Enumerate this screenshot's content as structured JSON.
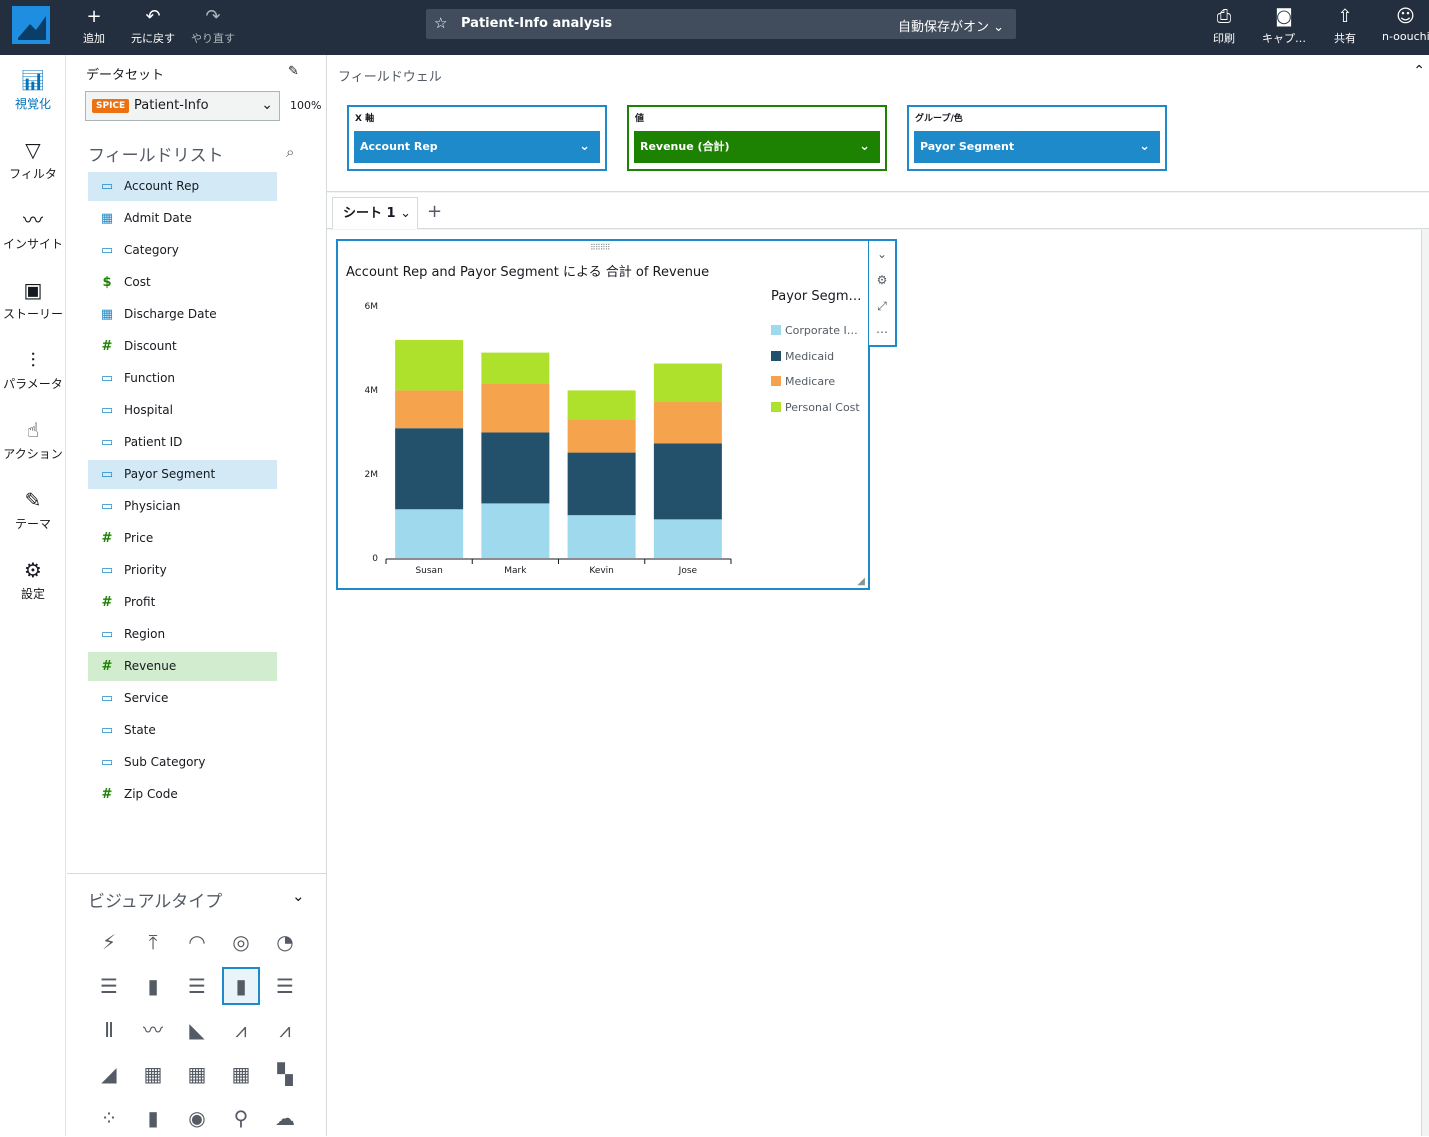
{
  "topbar": {
    "add_label": "追加",
    "undo_label": "元に戻す",
    "redo_label": "やり直す",
    "analysis_title": "Patient-Info analysis",
    "autosave": "自動保存がオン",
    "print_label": "印刷",
    "capture_label": "キャプ…",
    "share_label": "共有",
    "user_label": "n-oouchi"
  },
  "leftnav": {
    "items": [
      {
        "label": "視覚化",
        "icon": "bar-chart-icon"
      },
      {
        "label": "フィルタ",
        "icon": "filter-icon"
      },
      {
        "label": "インサイト",
        "icon": "insight-icon"
      },
      {
        "label": "ストーリー",
        "icon": "story-icon"
      },
      {
        "label": "パラメータ",
        "icon": "parameter-icon"
      },
      {
        "label": "アクション",
        "icon": "action-icon"
      },
      {
        "label": "テーマ",
        "icon": "theme-icon"
      },
      {
        "label": "設定",
        "icon": "settings-icon"
      }
    ]
  },
  "dataset": {
    "label": "データセット",
    "spice_badge": "SPICE",
    "name": "Patient-Info",
    "percent": "100%"
  },
  "field_list": {
    "title": "フィールドリスト",
    "fields": [
      {
        "name": "Account Rep",
        "type": "dimension",
        "selected": "blue"
      },
      {
        "name": "Admit Date",
        "type": "date"
      },
      {
        "name": "Category",
        "type": "dimension"
      },
      {
        "name": "Cost",
        "type": "currency"
      },
      {
        "name": "Discharge Date",
        "type": "date"
      },
      {
        "name": "Discount",
        "type": "measure"
      },
      {
        "name": "Function",
        "type": "dimension"
      },
      {
        "name": "Hospital",
        "type": "dimension"
      },
      {
        "name": "Patient ID",
        "type": "dimension"
      },
      {
        "name": "Payor Segment",
        "type": "dimension",
        "selected": "blue"
      },
      {
        "name": "Physician",
        "type": "dimension"
      },
      {
        "name": "Price",
        "type": "measure"
      },
      {
        "name": "Priority",
        "type": "dimension"
      },
      {
        "name": "Profit",
        "type": "measure"
      },
      {
        "name": "Region",
        "type": "dimension"
      },
      {
        "name": "Revenue",
        "type": "measure",
        "selected": "green"
      },
      {
        "name": "Service",
        "type": "dimension"
      },
      {
        "name": "State",
        "type": "dimension"
      },
      {
        "name": "Sub Category",
        "type": "dimension"
      },
      {
        "name": "Zip Code",
        "type": "measure"
      }
    ]
  },
  "visual_types": {
    "title": "ビジュアルタイプ",
    "selected_index": 8
  },
  "field_wells": {
    "title": "フィールドウェル",
    "x_axis_label": "X 軸",
    "x_axis_value": "Account Rep",
    "value_label": "値",
    "value_value": "Revenue (合計)",
    "group_label": "グループ/色",
    "group_value": "Payor Segment"
  },
  "sheet": {
    "tab_label": "シート 1"
  },
  "visual": {
    "title": "Account Rep and Payor Segment による 合計 of Revenue"
  },
  "colors": {
    "accent": "#1f8ac9",
    "green": "#1d8102",
    "topbar": "#232f3e"
  },
  "chart_data": {
    "type": "bar",
    "stacked": true,
    "title": "Account Rep and Payor Segment による 合計 of Revenue",
    "categories": [
      "Susan",
      "Mark",
      "Kevin",
      "Jose"
    ],
    "series": [
      {
        "name": "Corporate I…",
        "color": "#9ed9ee",
        "values": [
          1160000,
          1300000,
          1020000,
          920000
        ]
      },
      {
        "name": "Medicaid",
        "color": "#23506b",
        "values": [
          1930000,
          1690000,
          1490000,
          1810000
        ]
      },
      {
        "name": "Medicare",
        "color": "#f5a34c",
        "values": [
          900000,
          1170000,
          790000,
          1000000
        ]
      },
      {
        "name": "Personal Cost",
        "color": "#aee12b",
        "values": [
          1200000,
          730000,
          690000,
          900000
        ]
      }
    ],
    "yticks": [
      "0",
      "2M",
      "4M",
      "6M"
    ],
    "ylim": [
      0,
      6000000
    ],
    "legend_title": "Payor Segm…",
    "legend_position": "right"
  }
}
